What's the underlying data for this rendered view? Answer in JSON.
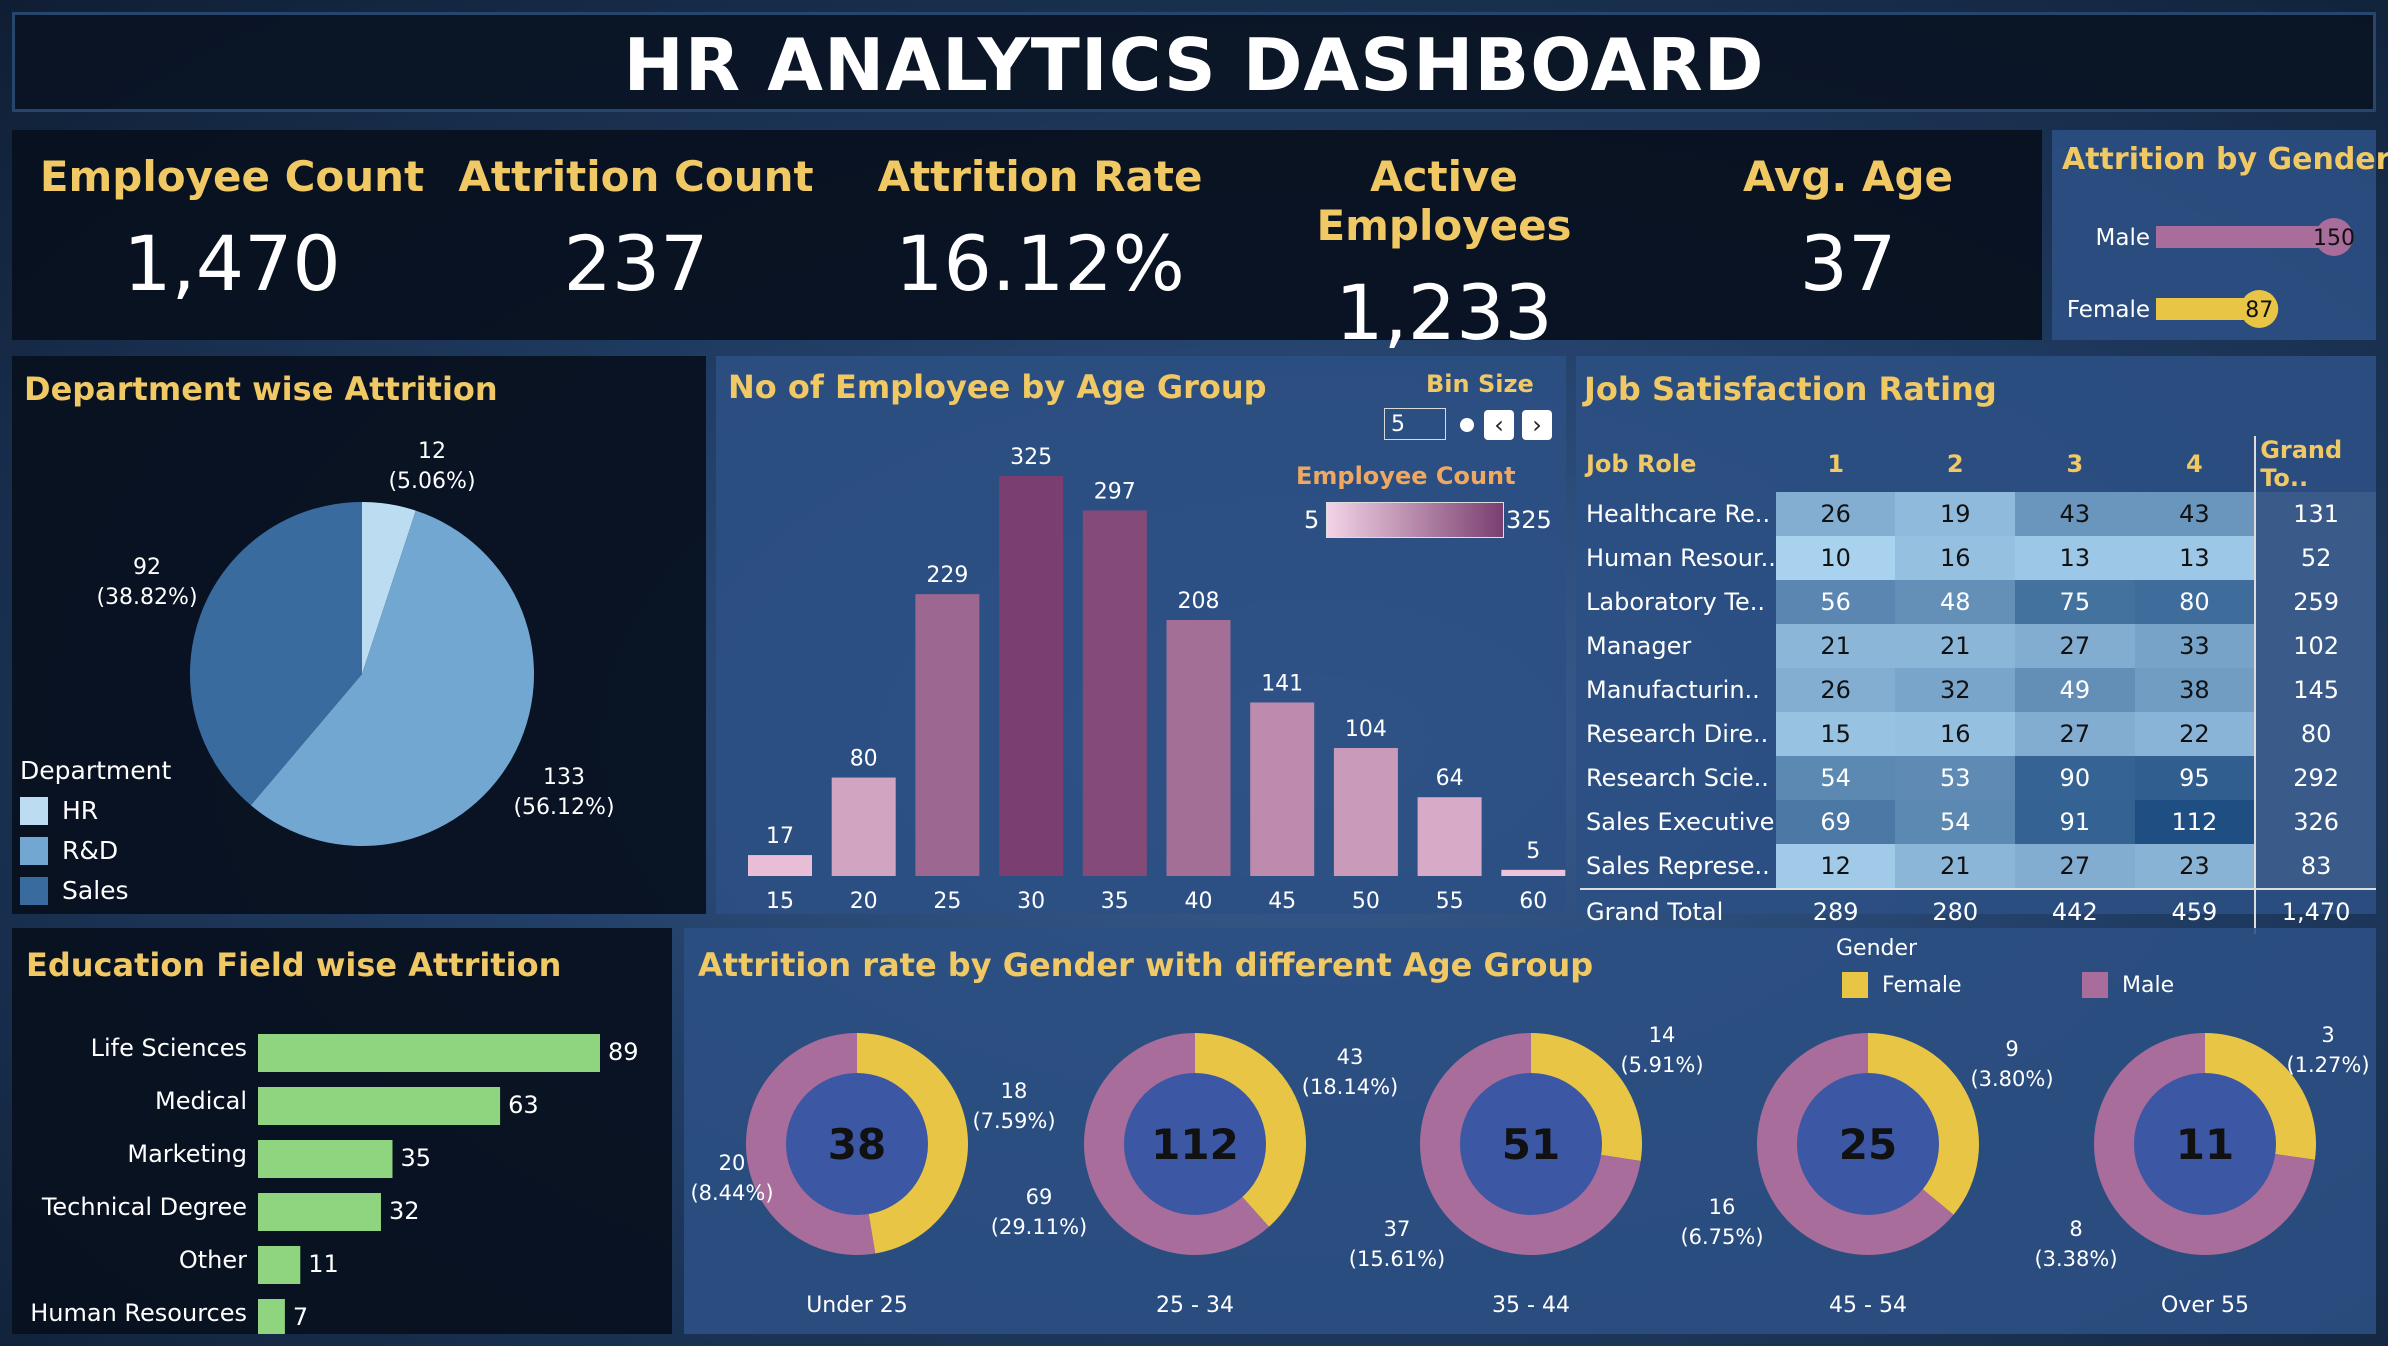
{
  "title": "HR ANALYTICS DASHBOARD",
  "kpis": [
    {
      "label": "Employee Count",
      "value": "1,470"
    },
    {
      "label": "Attrition Count",
      "value": "237"
    },
    {
      "label": "Attrition Rate",
      "value": "16.12%"
    },
    {
      "label": "Active Employees",
      "value": "1,233"
    },
    {
      "label": "Avg. Age",
      "value": "37"
    }
  ],
  "colors": {
    "accent": "#f0c864",
    "female": "#e8c545",
    "male": "#a86d9b",
    "hr": "#bcdcf1",
    "rd": "#72a7d2",
    "sales": "#3a6b9e",
    "education_bar": "#8fd47e",
    "age_bar_low": "#eec5dc",
    "age_bar_high": "#7a3f70"
  },
  "chart_data": [
    {
      "id": "gender",
      "type": "bar",
      "title": "Attrition by Gender",
      "categories": [
        "Male",
        "Female"
      ],
      "values": [
        150,
        87
      ],
      "value_labels": [
        "150",
        "87"
      ]
    },
    {
      "id": "department",
      "type": "pie",
      "title": "Department wise Attrition",
      "legend_title": "Department",
      "legend_placement": "bottom-left",
      "categories": [
        "HR",
        "R&D",
        "Sales"
      ],
      "values": [
        12,
        133,
        92
      ],
      "labels": [
        {
          "value": "12",
          "pct": "(5.06%)"
        },
        {
          "value": "133",
          "pct": "(56.12%)"
        },
        {
          "value": "92",
          "pct": "(38.82%)"
        }
      ]
    },
    {
      "id": "age",
      "type": "bar",
      "title": "No of Employee by Age Group",
      "bin_size_label": "Bin Size",
      "bin_size_value": "5",
      "color_legend_title": "Employee Count",
      "color_legend_min": "5",
      "color_legend_max": "325",
      "categories": [
        "15",
        "20",
        "25",
        "30",
        "35",
        "40",
        "45",
        "50",
        "55",
        "60"
      ],
      "values": [
        17,
        80,
        229,
        325,
        297,
        208,
        141,
        104,
        64,
        5
      ],
      "value_labels": [
        "17",
        "80",
        "229",
        "325",
        "297",
        "208",
        "141",
        "104",
        "64",
        "5"
      ],
      "ylim": [
        0,
        325
      ]
    },
    {
      "id": "job_satisfaction",
      "type": "table",
      "title": "Job Satisfaction Rating",
      "columns": [
        "Job Role",
        "1",
        "2",
        "3",
        "4",
        "Grand To.."
      ],
      "rows": [
        {
          "role": "Healthcare Re..",
          "values": [
            "26",
            "19",
            "43",
            "43"
          ],
          "total": "131"
        },
        {
          "role": "Human Resour..",
          "values": [
            "10",
            "16",
            "13",
            "13"
          ],
          "total": "52"
        },
        {
          "role": "Laboratory Te..",
          "values": [
            "56",
            "48",
            "75",
            "80"
          ],
          "total": "259"
        },
        {
          "role": "Manager",
          "values": [
            "21",
            "21",
            "27",
            "33"
          ],
          "total": "102"
        },
        {
          "role": "Manufacturin..",
          "values": [
            "26",
            "32",
            "49",
            "38"
          ],
          "total": "145"
        },
        {
          "role": "Research Dire..",
          "values": [
            "15",
            "16",
            "27",
            "22"
          ],
          "total": "80"
        },
        {
          "role": "Research Scie..",
          "values": [
            "54",
            "53",
            "90",
            "95"
          ],
          "total": "292"
        },
        {
          "role": "Sales Executive",
          "values": [
            "69",
            "54",
            "91",
            "112"
          ],
          "total": "326"
        },
        {
          "role": "Sales Represe..",
          "values": [
            "12",
            "21",
            "27",
            "23"
          ],
          "total": "83"
        }
      ],
      "grand_total": {
        "label": "Grand Total",
        "values": [
          "289",
          "280",
          "442",
          "459"
        ],
        "total": "1,470"
      }
    },
    {
      "id": "education",
      "type": "bar",
      "title": "Education Field wise Attrition",
      "categories": [
        "Life Sciences",
        "Medical",
        "Marketing",
        "Technical Degree",
        "Other",
        "Human Resources"
      ],
      "values": [
        89,
        63,
        35,
        32,
        11,
        7
      ],
      "value_labels": [
        "89",
        "63",
        "35",
        "32",
        "11",
        "7"
      ]
    },
    {
      "id": "gender_age",
      "type": "pie",
      "title": "Attrition rate by Gender with different Age Group",
      "legend_title": "Gender",
      "legend_placement": "top-right",
      "series_names": [
        "Female",
        "Male"
      ],
      "groups": [
        {
          "label": "Under 25",
          "total": "38",
          "female": 18,
          "male": 20,
          "female_label": "18",
          "female_pct": "(7.59%)",
          "male_label": "20",
          "male_pct": "(8.44%)"
        },
        {
          "label": "25 - 34",
          "total": "112",
          "female": 43,
          "male": 69,
          "female_label": "43",
          "female_pct": "(18.14%)",
          "male_label": "69",
          "male_pct": "(29.11%)"
        },
        {
          "label": "35 - 44",
          "total": "51",
          "female": 14,
          "male": 37,
          "female_label": "14",
          "female_pct": "(5.91%)",
          "male_label": "37",
          "male_pct": "(15.61%)"
        },
        {
          "label": "45 - 54",
          "total": "25",
          "female": 9,
          "male": 16,
          "female_label": "9",
          "female_pct": "(3.80%)",
          "male_label": "16",
          "male_pct": "(6.75%)"
        },
        {
          "label": "Over 55",
          "total": "11",
          "female": 3,
          "male": 8,
          "female_label": "3",
          "female_pct": "(1.27%)",
          "male_label": "8",
          "male_pct": "(3.38%)"
        }
      ]
    }
  ]
}
